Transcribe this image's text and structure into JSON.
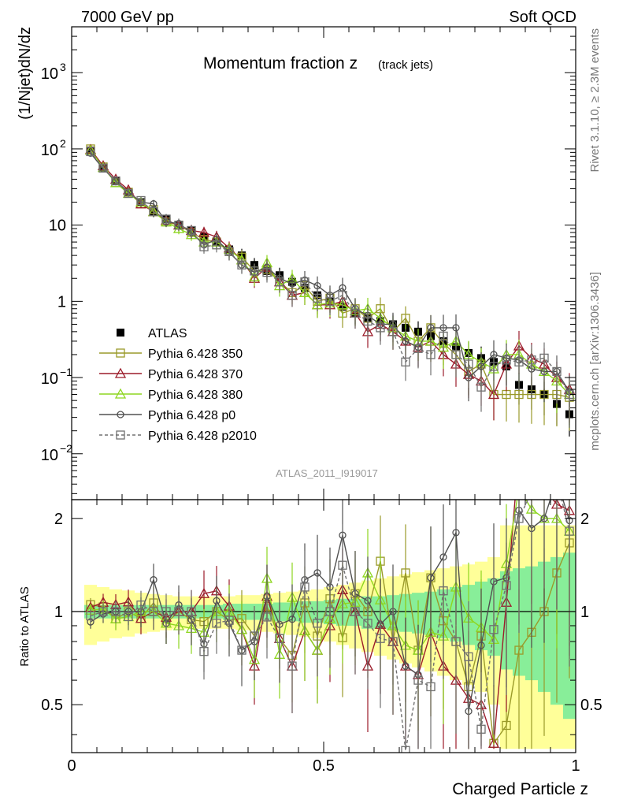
{
  "header": {
    "left": "7000 GeV pp",
    "right": "Soft QCD"
  },
  "side_text": {
    "rivet": "Rivet 3.1.10, ≥ 2.3M events",
    "mcplots": "mcplots.cern.ch [arXiv:1306.3436]"
  },
  "chart_data": {
    "type": "scatter",
    "title": "Momentum fraction z",
    "title_sub": "(track jets)",
    "ylabel": "(1/Njet)dN/dz",
    "xlabel": "Charged Particle z",
    "analysis_id": "ATLAS_2011_I919017",
    "yscale": "log",
    "ylim": [
      0.0025,
      4000
    ],
    "xlim": [
      0,
      1
    ],
    "y_ticks": [
      {
        "value": 0.01,
        "base": "10",
        "exp": "−2"
      },
      {
        "value": 0.1,
        "base": "10",
        "exp": "−1"
      },
      {
        "value": 1,
        "base": "1",
        "exp": ""
      },
      {
        "value": 10,
        "base": "10",
        "exp": ""
      },
      {
        "value": 100,
        "base": "10",
        "exp": "2"
      },
      {
        "value": 1000,
        "base": "10",
        "exp": "3"
      }
    ],
    "x_ticks": [
      {
        "value": 0,
        "label": "0"
      },
      {
        "value": 0.5,
        "label": "0.5"
      },
      {
        "value": 1,
        "label": "1"
      }
    ],
    "ratio": {
      "ylabel": "Ratio to ATLAS",
      "ylim": [
        0.35,
        2.3
      ],
      "ticks": [
        {
          "value": 0.5,
          "label": "0.5"
        },
        {
          "value": 1,
          "label": "1"
        },
        {
          "value": 2,
          "label": "2"
        }
      ],
      "band_edges": [
        0.025,
        0.05,
        0.075,
        0.1,
        0.125,
        0.15,
        0.175,
        0.2,
        0.225,
        0.25,
        0.275,
        0.3,
        0.325,
        0.35,
        0.375,
        0.4,
        0.425,
        0.45,
        0.475,
        0.5,
        0.525,
        0.55,
        0.575,
        0.6,
        0.625,
        0.65,
        0.675,
        0.7,
        0.725,
        0.75,
        0.775,
        0.8,
        0.825,
        0.85,
        0.875,
        0.9,
        0.925,
        0.95,
        0.975,
        1.0
      ],
      "band_stat": [
        0.05,
        0.05,
        0.05,
        0.05,
        0.05,
        0.05,
        0.05,
        0.05,
        0.05,
        0.05,
        0.05,
        0.06,
        0.06,
        0.06,
        0.06,
        0.07,
        0.07,
        0.08,
        0.08,
        0.09,
        0.1,
        0.1,
        0.12,
        0.12,
        0.13,
        0.14,
        0.15,
        0.16,
        0.18,
        0.2,
        0.22,
        0.25,
        0.28,
        0.35,
        0.38,
        0.4,
        0.45,
        0.5,
        0.55
      ],
      "band_tot": [
        0.22,
        0.2,
        0.18,
        0.17,
        0.15,
        0.14,
        0.13,
        0.12,
        0.12,
        0.12,
        0.12,
        0.12,
        0.13,
        0.13,
        0.14,
        0.15,
        0.16,
        0.17,
        0.18,
        0.2,
        0.22,
        0.24,
        0.26,
        0.28,
        0.3,
        0.32,
        0.34,
        0.36,
        0.38,
        0.4,
        0.42,
        0.45,
        0.5,
        0.9,
        0.9,
        0.9,
        0.9,
        0.9,
        0.9
      ]
    },
    "x": [
      0.0375,
      0.0625,
      0.0875,
      0.1125,
      0.1375,
      0.1625,
      0.1875,
      0.2125,
      0.2375,
      0.2625,
      0.2875,
      0.3125,
      0.3375,
      0.3625,
      0.3875,
      0.4125,
      0.4375,
      0.4625,
      0.4875,
      0.5125,
      0.5375,
      0.5625,
      0.5875,
      0.6125,
      0.6375,
      0.6625,
      0.6875,
      0.7125,
      0.7375,
      0.7625,
      0.7875,
      0.8125,
      0.8375,
      0.8625,
      0.8875,
      0.9125,
      0.9375,
      0.9625,
      0.9875
    ],
    "series": [
      {
        "name": "ATLAS",
        "color": "#000000",
        "marker": "filled-square",
        "values": [
          95,
          56,
          38,
          27,
          20,
          15,
          12,
          10,
          8.5,
          7,
          6,
          4.8,
          4,
          3,
          2.5,
          2.2,
          1.8,
          1.5,
          1.2,
          1.0,
          0.85,
          0.7,
          0.6,
          0.55,
          0.5,
          0.45,
          0.4,
          0.35,
          0.3,
          0.25,
          0.21,
          0.18,
          0.16,
          0.14,
          0.08,
          0.07,
          0.06,
          0.045,
          0.033
        ]
      },
      {
        "name": "Pythia 6.428 350",
        "color": "#9a9a2a",
        "marker": "open-square",
        "values": [
          100,
          58,
          36,
          27,
          19,
          16,
          11,
          10,
          8,
          6.5,
          6,
          4.5,
          3.8,
          2.5,
          2.6,
          1.8,
          1.3,
          1.6,
          1.0,
          1.1,
          0.7,
          0.8,
          0.6,
          0.8,
          0.4,
          0.6,
          0.3,
          0.45,
          0.28,
          0.2,
          0.12,
          0.15,
          0.06,
          0.06,
          0.06,
          0.06,
          0.06,
          0.06,
          0.055
        ]
      },
      {
        "name": "Pythia 6.428 370",
        "color": "#9b1c2a",
        "marker": "open-triangle",
        "values": [
          98,
          60,
          40,
          29,
          19,
          15,
          11.5,
          10,
          8.5,
          8,
          7,
          5,
          3.5,
          2.0,
          2.8,
          1.8,
          1.2,
          1.3,
          0.9,
          0.9,
          1.0,
          0.7,
          0.4,
          0.5,
          0.4,
          0.3,
          0.25,
          0.3,
          0.2,
          0.15,
          0.11,
          0.09,
          0.06,
          0.15,
          0.26,
          0.18,
          0.15,
          0.1,
          0.07
        ]
      },
      {
        "name": "Pythia 6.428 380",
        "color": "#8ed620",
        "marker": "open-triangle",
        "values": [
          96,
          57,
          36,
          26,
          20,
          15,
          11,
          9,
          7.5,
          6,
          6,
          4.8,
          3.5,
          2.1,
          3.2,
          1.6,
          2.0,
          1.3,
          0.9,
          0.95,
          0.9,
          0.75,
          0.8,
          0.6,
          0.45,
          0.35,
          0.3,
          0.3,
          0.25,
          0.3,
          0.2,
          0.16,
          0.13,
          0.2,
          0.2,
          0.15,
          0.12,
          0.09,
          0.06
        ]
      },
      {
        "name": "Pythia 6.428 p0",
        "color": "#505050",
        "marker": "open-circle",
        "values": [
          88,
          55,
          38,
          27,
          20,
          19,
          11,
          10.5,
          8,
          5.5,
          6.5,
          4.4,
          3.0,
          2.4,
          2.8,
          2.0,
          1.7,
          1.9,
          1.6,
          1.2,
          1.5,
          0.8,
          0.65,
          0.5,
          0.5,
          0.3,
          0.25,
          0.45,
          0.45,
          0.45,
          0.1,
          0.14,
          0.2,
          0.18,
          0.17,
          0.13,
          0.12,
          0.12,
          0.065
        ]
      },
      {
        "name": "Pythia 6.428 p2010",
        "color": "#707070",
        "marker": "open-square",
        "dashed": true,
        "values": [
          92,
          56,
          38,
          26,
          21,
          15,
          12,
          10,
          8.5,
          5.2,
          5.5,
          4.5,
          3.0,
          2.5,
          2.4,
          1.8,
          1.2,
          1.8,
          1.1,
          1.0,
          1.2,
          0.7,
          0.55,
          0.45,
          0.4,
          0.16,
          0.24,
          0.2,
          0.35,
          0.2,
          0.15,
          0.075,
          0.14,
          0.17,
          0.16,
          0.17,
          0.18,
          0.12,
          0.06
        ]
      }
    ]
  }
}
